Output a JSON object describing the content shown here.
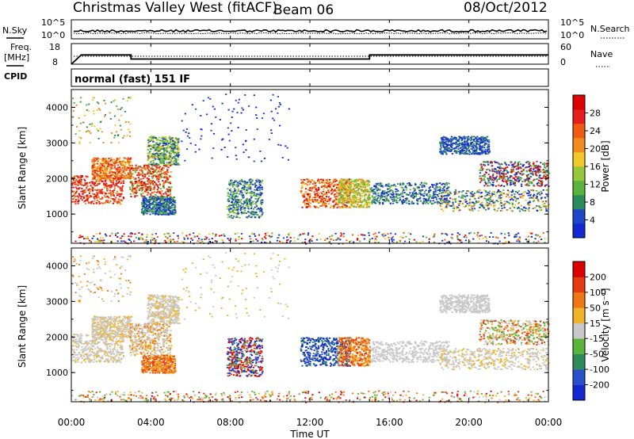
{
  "header": {
    "title": "Christmas Valley West (fitACF)",
    "beam": "Beam 06",
    "date": "08/Oct/2012"
  },
  "top_panels": {
    "nsky_label": "N.Sky",
    "nsky_ticks": [
      "10^5",
      "10^0"
    ],
    "nsearch_label": "N.Search",
    "nsearch_ticks": [
      "10^5",
      "10^0"
    ],
    "freq_label_line1": "Freq.",
    "freq_label_line2": "[MHz]",
    "freq_ticks": [
      "18",
      "8"
    ],
    "nave_label": "Nave",
    "nave_ticks": [
      "60",
      "0"
    ],
    "cpid_label": "CPID",
    "cpid_value": "normal (fast) 151 IF"
  },
  "power_panel": {
    "ylabel": "Slant Range [km]",
    "yticks": [
      "4000",
      "3000",
      "2000",
      "1000"
    ],
    "colorbar_label": "Power [dB]",
    "colorbar_ticks": [
      "28",
      "24",
      "20",
      "16",
      "12",
      "8",
      "4"
    ],
    "colors": [
      "#1428d2",
      "#1e46c8",
      "#2d8c5a",
      "#5ab43c",
      "#96c83c",
      "#f0c828",
      "#f08c1e",
      "#f05a14",
      "#e61e1e",
      "#dc0000"
    ]
  },
  "velocity_panel": {
    "ylabel": "Slant Range [km]",
    "yticks": [
      "4000",
      "3000",
      "2000",
      "1000"
    ],
    "colorbar_label": "Velocity [m s⁻¹]",
    "colorbar_ticks": [
      "200",
      "100",
      "50",
      "15",
      "-15",
      "-50",
      "-100",
      "-200"
    ],
    "colors": [
      "#1428d2",
      "#2850c8",
      "#2d8c5a",
      "#5ab43c",
      "#c8c8c8",
      "#f0b428",
      "#f07814",
      "#e63c14",
      "#dc0000"
    ]
  },
  "xaxis": {
    "label": "Time UT",
    "ticks": [
      "00:00",
      "04:00",
      "08:00",
      "12:00",
      "16:00",
      "20:00",
      "00:00"
    ]
  },
  "chart_data": [
    {
      "type": "line",
      "name": "N.Sky / N.Search",
      "x": [
        "00:00",
        "24:00"
      ],
      "note": "",
      "values_approx": "near 10^0 baseline"
    },
    {
      "type": "line",
      "name": "Frequency",
      "x": [
        "00:00",
        "00:30",
        "03:00",
        "03:00",
        "15:00",
        "15:00",
        "24:00"
      ],
      "values": [
        8,
        12.5,
        12.5,
        10.5,
        10.5,
        12.5,
        12.5
      ],
      "ylabel": "[MHz]",
      "ylim": [
        8,
        18
      ]
    },
    {
      "type": "heatmap",
      "title": "Power",
      "xlabel": "Time UT",
      "ylabel": "Slant Range [km]",
      "xlim": [
        "00:00",
        "24:00"
      ],
      "ylim": [
        180,
        4500
      ],
      "zlabel": "Power [dB]",
      "zlim": [
        0,
        30
      ]
    },
    {
      "type": "heatmap",
      "title": "Velocity",
      "xlabel": "Time UT",
      "ylabel": "Slant Range [km]",
      "xlim": [
        "00:00",
        "24:00"
      ],
      "ylim": [
        180,
        4500
      ],
      "zlabel": "Velocity [m s⁻¹]",
      "zlim": [
        -200,
        200
      ]
    }
  ]
}
